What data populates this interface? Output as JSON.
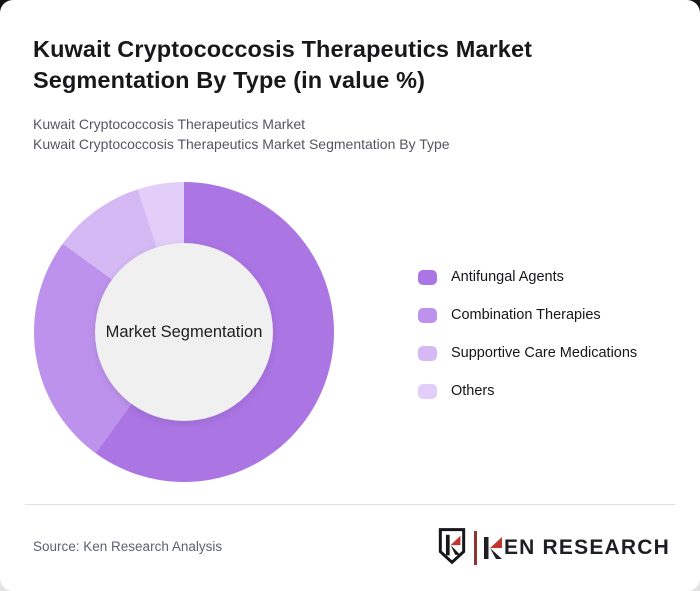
{
  "header": {
    "title": "Kuwait Cryptococcosis Therapeutics Market Segmentation By Type (in value %)",
    "subtitles": [
      "Kuwait Cryptococcosis Therapeutics Market",
      "Kuwait Cryptococcosis Therapeutics Market Segmentation By Type"
    ]
  },
  "chart_data": {
    "type": "pie",
    "donut": true,
    "title": "Kuwait Cryptococcosis Therapeutics Market Segmentation By Type (in value %)",
    "categories": [
      "Antifungal Agents",
      "Combination Therapies",
      "Supportive Care Medications",
      "Others"
    ],
    "values": [
      60,
      25,
      10,
      5
    ],
    "unit": "%",
    "colors": [
      "#ab75e4",
      "#bd92ec",
      "#d5b9f4",
      "#e2cef8"
    ],
    "center_label": "Market Segmentation",
    "hole_color": "#f0f0f0",
    "legend_position": "right",
    "start_angle_deg": 0,
    "direction": "clockwise"
  },
  "footer": {
    "source": "Source: Ken Research Analysis",
    "logo_text": "KEN RESEARCH",
    "logo_text_rest": "EN RESEARCH",
    "logo_red": "#c4342f",
    "logo_dark": "#1e1e23"
  }
}
